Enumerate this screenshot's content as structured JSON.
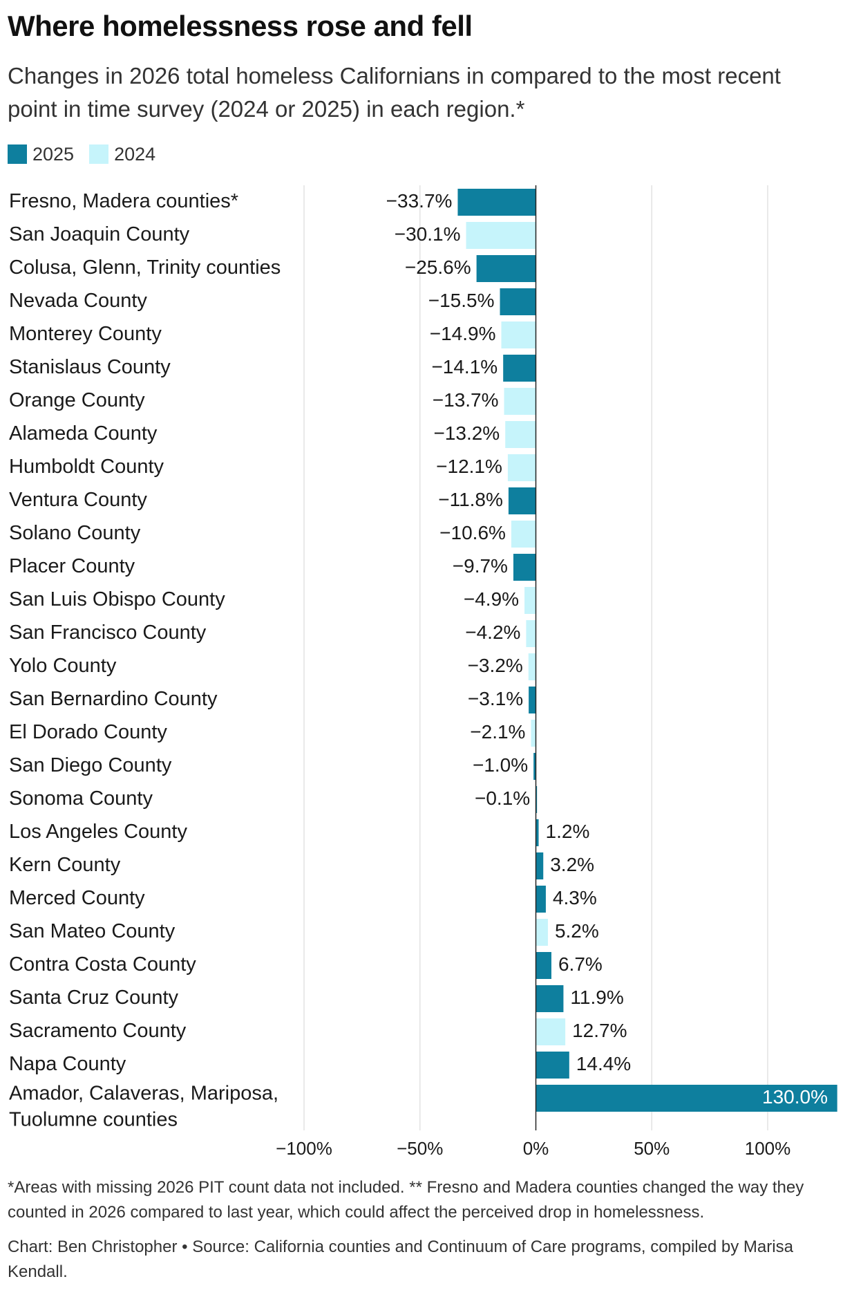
{
  "header": {
    "title": "Where homelessness rose and fell",
    "subtitle": "Changes in 2026 total homeless Californians in compared to the most recent point in time survey (2024 or 2025) in each region.*"
  },
  "legend": {
    "items": [
      {
        "label": "2025",
        "color": "#0e7f9e"
      },
      {
        "label": "2024",
        "color": "#c6f4fb"
      }
    ]
  },
  "chart_data": {
    "type": "bar",
    "orientation": "horizontal",
    "title": "Where homelessness rose and fell",
    "subtitle": "Changes in 2026 total homeless Californians in compared to the most recent point in time survey (2024 or 2025) in each region.*",
    "xlabel": "",
    "ylabel": "",
    "xlim": [
      -100,
      130
    ],
    "x_ticks": [
      {
        "value": -100,
        "label": "−100%"
      },
      {
        "value": -50,
        "label": "−50%"
      },
      {
        "value": 0,
        "label": "0%"
      },
      {
        "value": 50,
        "label": "50%"
      },
      {
        "value": 100,
        "label": "100%"
      }
    ],
    "grid": true,
    "legend_position": "top-left",
    "series_colors": {
      "2025": "#0e7f9e",
      "2024": "#c6f4fb"
    },
    "categories": [
      "Fresno, Madera counties*",
      "San Joaquin County",
      "Colusa, Glenn, Trinity counties",
      "Nevada County",
      "Monterey County",
      "Stanislaus County",
      "Orange County",
      "Alameda County",
      "Humboldt County",
      "Ventura County",
      "Solano County",
      "Placer County",
      "San Luis Obispo County",
      "San Francisco County",
      "Yolo County",
      "San Bernardino County",
      "El Dorado County",
      "San Diego County",
      "Sonoma County",
      "Los Angeles County",
      "Kern County",
      "Merced County",
      "San Mateo County",
      "Contra Costa County",
      "Santa Cruz County",
      "Sacramento County",
      "Napa County",
      "Amador, Calaveras, Mariposa, Tuolumne counties"
    ],
    "bars": [
      {
        "value": -33.7,
        "label": "−33.7%",
        "year": "2025"
      },
      {
        "value": -30.1,
        "label": "−30.1%",
        "year": "2024"
      },
      {
        "value": -25.6,
        "label": "−25.6%",
        "year": "2025"
      },
      {
        "value": -15.5,
        "label": "−15.5%",
        "year": "2025"
      },
      {
        "value": -14.9,
        "label": "−14.9%",
        "year": "2024"
      },
      {
        "value": -14.1,
        "label": "−14.1%",
        "year": "2025"
      },
      {
        "value": -13.7,
        "label": "−13.7%",
        "year": "2024"
      },
      {
        "value": -13.2,
        "label": "−13.2%",
        "year": "2024"
      },
      {
        "value": -12.1,
        "label": "−12.1%",
        "year": "2024"
      },
      {
        "value": -11.8,
        "label": "−11.8%",
        "year": "2025"
      },
      {
        "value": -10.6,
        "label": "−10.6%",
        "year": "2024"
      },
      {
        "value": -9.7,
        "label": "−9.7%",
        "year": "2025"
      },
      {
        "value": -4.9,
        "label": "−4.9%",
        "year": "2024"
      },
      {
        "value": -4.2,
        "label": "−4.2%",
        "year": "2024"
      },
      {
        "value": -3.2,
        "label": "−3.2%",
        "year": "2024"
      },
      {
        "value": -3.1,
        "label": "−3.1%",
        "year": "2025"
      },
      {
        "value": -2.1,
        "label": "−2.1%",
        "year": "2024"
      },
      {
        "value": -1.0,
        "label": "−1.0%",
        "year": "2025"
      },
      {
        "value": -0.1,
        "label": "−0.1%",
        "year": "2025"
      },
      {
        "value": 1.2,
        "label": "1.2%",
        "year": "2025"
      },
      {
        "value": 3.2,
        "label": "3.2%",
        "year": "2025"
      },
      {
        "value": 4.3,
        "label": "4.3%",
        "year": "2025"
      },
      {
        "value": 5.2,
        "label": "5.2%",
        "year": "2024"
      },
      {
        "value": 6.7,
        "label": "6.7%",
        "year": "2025"
      },
      {
        "value": 11.9,
        "label": "11.9%",
        "year": "2025"
      },
      {
        "value": 12.7,
        "label": "12.7%",
        "year": "2024"
      },
      {
        "value": 14.4,
        "label": "14.4%",
        "year": "2025"
      },
      {
        "value": 130.0,
        "label": "130.0%",
        "year": "2025"
      }
    ]
  },
  "footer": {
    "note": "*Areas with missing 2026 PIT count data not included. ** Fresno and Madera counties changed the way they counted in 2026 compared to last year, which could affect the perceived drop in homelessness.",
    "credit": "Chart: Ben Christopher • Source: California counties and Continuum of Care programs, compiled by Marisa Kendall."
  }
}
